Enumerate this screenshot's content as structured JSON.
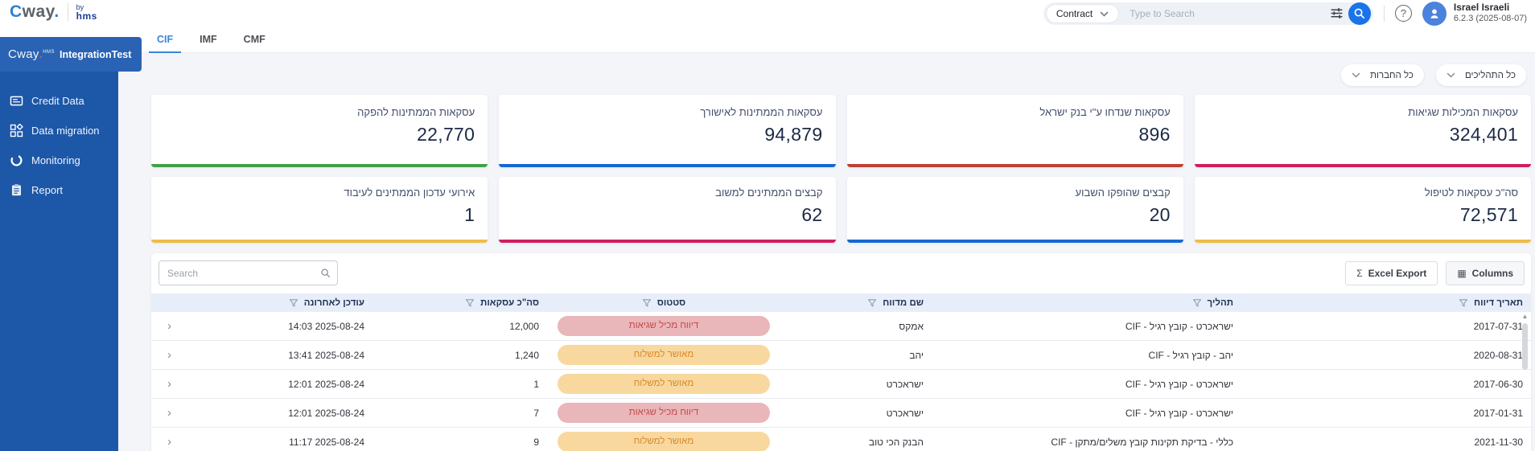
{
  "brand": {
    "logo_c": "C",
    "logo_rest": "way",
    "logo_dot": ".",
    "by": "by",
    "by2": "hms"
  },
  "topbar": {
    "search_category": "Contract",
    "search_placeholder": "Type to Search",
    "help_glyph": "?",
    "user_name": "Israel Israeli",
    "user_version": "6.2.3 (2025-08-07)"
  },
  "sidebar": {
    "logo": "Cway",
    "logo_sup": "HMS",
    "title": "IntegrationTest",
    "items": [
      {
        "label": "Credit Data",
        "icon": "credit-card-icon"
      },
      {
        "label": "Data migration",
        "icon": "data-migration-icon"
      },
      {
        "label": "Monitoring",
        "icon": "monitoring-icon"
      },
      {
        "label": "Report",
        "icon": "report-icon"
      }
    ]
  },
  "tabs": [
    {
      "label": "CIF",
      "active": true
    },
    {
      "label": "IMF",
      "active": false
    },
    {
      "label": "CMF",
      "active": false
    }
  ],
  "filters": [
    {
      "label": "כל התהליכים"
    },
    {
      "label": "כל החברות"
    }
  ],
  "cards": [
    [
      {
        "title": "עסקאות המכילות שגיאות",
        "value": "324,401",
        "color": "#d01f5e"
      },
      {
        "title": "עסקאות שנדחו ע\"י בנק ישראל",
        "value": "896",
        "color": "#c04036"
      },
      {
        "title": "עסקאות הממתינות לאישורך",
        "value": "94,879",
        "color": "#1568d3"
      },
      {
        "title": "עסקאות הממתינות להפקה",
        "value": "22,770",
        "color": "#43a047"
      }
    ],
    [
      {
        "title": "סה\"כ עסקאות לטיפול",
        "value": "72,571",
        "color": "#eebd45"
      },
      {
        "title": "קבצים שהופקו השבוע",
        "value": "20",
        "color": "#1568d3"
      },
      {
        "title": "קבצים הממתינים למשוב",
        "value": "62",
        "color": "#d01f5e"
      },
      {
        "title": "אירועי עדכון הממתינים לעיבוד",
        "value": "1",
        "color": "#eebd45"
      }
    ]
  ],
  "table": {
    "search_placeholder": "Search",
    "excel_button": "Excel Export",
    "excel_icon_glyph": "Σ",
    "columns_button": "Columns",
    "columns_icon_glyph": "▦",
    "expand_glyph": "›",
    "scroll_up_glyph": "▲",
    "headers": [
      "תאריך דיווח",
      "תהליך",
      "שם מדווח",
      "סטטוס",
      "סה\"כ עסקאות",
      "עודכן לאחרונה"
    ],
    "statuses": {
      "error": {
        "label": "דיווח מכיל שגיאות",
        "bg": "#e9b6ba",
        "fg": "#c34a4a"
      },
      "approved": {
        "label": "מאושר למשלוח",
        "bg": "#f8d89e",
        "fg": "#d7892c"
      }
    },
    "rows": [
      {
        "report_date": "2017-07-31",
        "process": "ישראכרט - קובץ רגיל - CIF",
        "reporter": "אמקס",
        "status": "error",
        "total": "12,000",
        "last_updated": "2025-08-24 14:03"
      },
      {
        "report_date": "2020-08-31",
        "process": "יהב - קובץ רגיל - CIF",
        "reporter": "יהב",
        "status": "approved",
        "total": "1,240",
        "last_updated": "2025-08-24 13:41"
      },
      {
        "report_date": "2017-06-30",
        "process": "ישראכרט - קובץ רגיל - CIF",
        "reporter": "ישראכרט",
        "status": "approved",
        "total": "1",
        "last_updated": "2025-08-24 12:01"
      },
      {
        "report_date": "2017-01-31",
        "process": "ישראכרט - קובץ רגיל - CIF",
        "reporter": "ישראכרט",
        "status": "error",
        "total": "7",
        "last_updated": "2025-08-24 12:01"
      },
      {
        "report_date": "2021-11-30",
        "process": "כללי - בדיקת תקינות קובץ משלים/מתקן - CIF",
        "reporter": "הבנק הכי טוב",
        "status": "approved",
        "total": "9",
        "last_updated": "2025-08-24 11:17"
      }
    ]
  }
}
